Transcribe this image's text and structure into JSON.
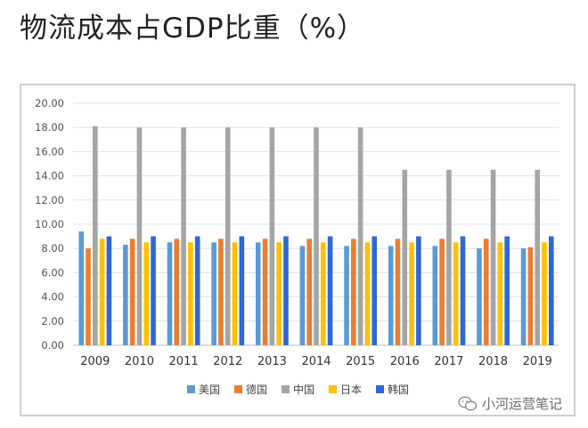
{
  "title": "物流成本占GDP比重（%）",
  "watermark": "小河运营笔记",
  "chart_data": {
    "type": "bar",
    "title": "",
    "xlabel": "",
    "ylabel": "",
    "ylim": [
      0,
      20
    ],
    "yticks": [
      "0.00",
      "2.00",
      "4.00",
      "6.00",
      "8.00",
      "10.00",
      "12.00",
      "14.00",
      "16.00",
      "18.00",
      "20.00"
    ],
    "grid": true,
    "legend": "bottom",
    "categories": [
      "2009",
      "2010",
      "2011",
      "2012",
      "2013",
      "2014",
      "2015",
      "2016",
      "2017",
      "2018",
      "2019"
    ],
    "series": [
      {
        "name": "美国",
        "color": "#5b9bd5",
        "values": [
          9.4,
          8.3,
          8.5,
          8.5,
          8.5,
          8.2,
          8.2,
          8.2,
          8.2,
          8.0,
          8.0
        ]
      },
      {
        "name": "德国",
        "color": "#ed7d31",
        "values": [
          8.0,
          8.8,
          8.8,
          8.8,
          8.8,
          8.8,
          8.8,
          8.8,
          8.8,
          8.8,
          8.1
        ]
      },
      {
        "name": "中国",
        "color": "#a5a5a5",
        "values": [
          18.1,
          18.0,
          18.0,
          18.0,
          18.0,
          18.0,
          18.0,
          14.5,
          14.5,
          14.5,
          14.5
        ]
      },
      {
        "name": "日本",
        "color": "#ffc000",
        "values": [
          8.8,
          8.5,
          8.5,
          8.5,
          8.5,
          8.5,
          8.5,
          8.5,
          8.5,
          8.5,
          8.5
        ]
      },
      {
        "name": "韩国",
        "color": "#2f67d6",
        "values": [
          9.0,
          9.0,
          9.0,
          9.0,
          9.0,
          9.0,
          9.0,
          9.0,
          9.0,
          9.0,
          9.0
        ]
      }
    ]
  }
}
